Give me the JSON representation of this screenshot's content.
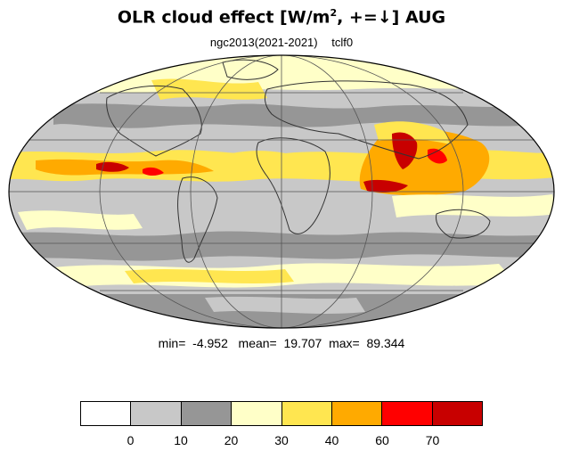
{
  "title": {
    "main": "OLR cloud effect [W/m",
    "sup": "2",
    "rest": ", +=↓]  AUG"
  },
  "subtitle": {
    "run": "ngc2013(2021-2021)",
    "variable": "tclf0"
  },
  "stats": {
    "text": "min=  -4.952   mean=  19.707  max=  89.344"
  },
  "colorbar": {
    "colors": [
      "#ffffff",
      "#c8c8c8",
      "#969696",
      "#ffffc8",
      "#ffe650",
      "#ffaa00",
      "#ff0000",
      "#c80000"
    ],
    "tick_labels": [
      "0",
      "10",
      "20",
      "30",
      "40",
      "60",
      "70"
    ]
  },
  "map": {
    "projection": "mollweide",
    "central_longitude": 0,
    "land_outline_color": "#333333",
    "grid_color": "#555555"
  }
}
